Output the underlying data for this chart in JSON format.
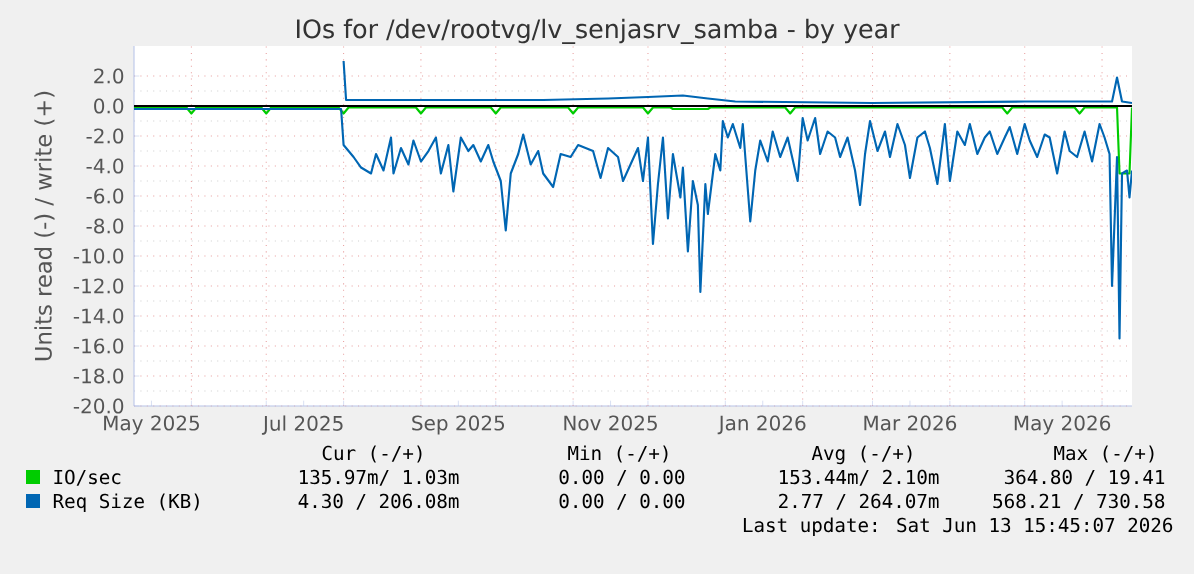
{
  "chart_data": {
    "type": "line",
    "title": "IOs for /dev/rootvg/lv_senjasrv_samba - by year",
    "ylabel": "Units read (-) / write (+)",
    "xlim": [
      "2025-05-09",
      "2026-06-13"
    ],
    "ylim": [
      -20,
      4
    ],
    "xticks": [
      {
        "value": "2025-05-16",
        "label": "May 2025"
      },
      {
        "value": "2025-07-16",
        "label": "Jul 2025"
      },
      {
        "value": "2025-09-16",
        "label": "Sep 2025"
      },
      {
        "value": "2025-11-16",
        "label": "Nov 2025"
      },
      {
        "value": "2026-01-16",
        "label": "Jan 2026"
      },
      {
        "value": "2026-03-16",
        "label": "Mar 2026"
      },
      {
        "value": "2026-05-16",
        "label": "May 2026"
      },
      {
        "value": "2025-06-01",
        "label": null
      },
      {
        "value": "2025-07-01",
        "label": null
      },
      {
        "value": "2025-08-01",
        "label": null
      },
      {
        "value": "2025-09-01",
        "label": null
      },
      {
        "value": "2025-10-01",
        "label": null
      },
      {
        "value": "2025-11-01",
        "label": null
      },
      {
        "value": "2025-12-01",
        "label": null
      },
      {
        "value": "2026-01-01",
        "label": null
      },
      {
        "value": "2026-02-01",
        "label": null
      },
      {
        "value": "2026-03-01",
        "label": null
      },
      {
        "value": "2026-04-01",
        "label": null
      },
      {
        "value": "2026-05-01",
        "label": null
      },
      {
        "value": "2026-06-01",
        "label": null
      }
    ],
    "yticks": [
      {
        "value": 2,
        "label": "2.0"
      },
      {
        "value": 0,
        "label": "0.0"
      },
      {
        "value": -2,
        "label": "-2.0"
      },
      {
        "value": -4,
        "label": "-4.0"
      },
      {
        "value": -6,
        "label": "-6.0"
      },
      {
        "value": -8,
        "label": "-8.0"
      },
      {
        "value": -10,
        "label": "-10.0"
      },
      {
        "value": -12,
        "label": "-12.0"
      },
      {
        "value": -14,
        "label": "-14.0"
      },
      {
        "value": -16,
        "label": "-16.0"
      },
      {
        "value": -18,
        "label": "-18.0"
      },
      {
        "value": -20,
        "label": "-20.0"
      }
    ],
    "grid": true,
    "legend": "bottom",
    "ref_lines": [
      {
        "axis": "y",
        "value": 0,
        "color": "#000000"
      }
    ],
    "series": [
      {
        "name": "IO/sec",
        "color": "#00cc00",
        "x": [
          "2025-05-09",
          "2025-05-30",
          "2025-06-01",
          "2025-06-03",
          "2025-06-29",
          "2025-07-01",
          "2025-07-03",
          "2025-07-30",
          "2025-08-01",
          "2025-08-03",
          "2025-08-30",
          "2025-09-01",
          "2025-09-03",
          "2025-09-29",
          "2025-10-01",
          "2025-10-03",
          "2025-10-30",
          "2025-11-01",
          "2025-11-03",
          "2025-11-29",
          "2025-12-01",
          "2025-12-03",
          "2025-12-10",
          "2025-12-11",
          "2025-12-25",
          "2025-12-26",
          "2026-01-25",
          "2026-01-27",
          "2026-01-29",
          "2026-04-22",
          "2026-04-24",
          "2026-04-26",
          "2026-05-21",
          "2026-05-23",
          "2026-05-25",
          "2026-06-07",
          "2026-06-08",
          "2026-06-12",
          "2026-06-13"
        ],
        "values": [
          -0.1,
          -0.1,
          -0.5,
          -0.1,
          -0.1,
          -0.5,
          -0.1,
          -0.1,
          -0.5,
          -0.1,
          -0.1,
          -0.5,
          -0.1,
          -0.1,
          -0.5,
          -0.1,
          -0.1,
          -0.5,
          -0.1,
          -0.1,
          -0.5,
          -0.1,
          -0.1,
          -0.2,
          -0.2,
          -0.1,
          -0.1,
          -0.5,
          -0.1,
          -0.1,
          -0.5,
          -0.1,
          -0.1,
          -0.5,
          -0.1,
          -0.1,
          -4.5,
          -4.5,
          -0.1
        ]
      },
      {
        "name": "Req Size (KB)",
        "color": "#0066b3",
        "x": [
          "2025-05-09",
          "2025-06-15",
          "2025-07-15",
          "2025-07-31",
          "2025-08-01",
          "2025-08-05",
          "2025-08-08",
          "2025-08-12",
          "2025-08-14",
          "2025-08-17",
          "2025-08-20",
          "2025-08-21",
          "2025-08-24",
          "2025-08-27",
          "2025-08-29",
          "2025-09-01",
          "2025-09-04",
          "2025-09-07",
          "2025-09-09",
          "2025-09-12",
          "2025-09-14",
          "2025-09-17",
          "2025-09-20",
          "2025-09-22",
          "2025-09-25",
          "2025-09-28",
          "2025-09-30",
          "2025-10-03",
          "2025-10-05",
          "2025-10-07",
          "2025-10-10",
          "2025-10-12",
          "2025-10-15",
          "2025-10-18",
          "2025-10-20",
          "2025-10-24",
          "2025-10-27",
          "2025-10-31",
          "2025-11-03",
          "2025-11-09",
          "2025-11-12",
          "2025-11-15",
          "2025-11-19",
          "2025-11-21",
          "2025-11-24",
          "2025-11-27",
          "2025-11-29",
          "2025-12-01",
          "2025-12-02",
          "2025-12-03",
          "2025-12-05",
          "2025-12-07",
          "2025-12-09",
          "2025-12-11",
          "2025-12-14",
          "2025-12-15",
          "2025-12-17",
          "2025-12-19",
          "2025-12-21",
          "2025-12-22",
          "2025-12-24",
          "2025-12-25",
          "2025-12-28",
          "2025-12-30",
          "2025-12-31",
          "2026-01-02",
          "2026-01-04",
          "2026-01-07",
          "2026-01-08",
          "2026-01-11",
          "2026-01-13",
          "2026-01-15",
          "2026-01-18",
          "2026-01-20",
          "2026-01-23",
          "2026-01-26",
          "2026-01-29",
          "2026-01-30",
          "2026-02-01",
          "2026-02-03",
          "2026-02-06",
          "2026-02-08",
          "2026-02-11",
          "2026-02-14",
          "2026-02-16",
          "2026-02-19",
          "2026-02-22",
          "2026-02-24",
          "2026-02-26",
          "2026-02-28",
          "2026-03-03",
          "2026-03-06",
          "2026-03-08",
          "2026-03-11",
          "2026-03-14",
          "2026-03-16",
          "2026-03-19",
          "2026-03-22",
          "2026-03-24",
          "2026-03-27",
          "2026-03-30",
          "2026-04-01",
          "2026-04-04",
          "2026-04-07",
          "2026-04-09",
          "2026-04-12",
          "2026-04-15",
          "2026-04-17",
          "2026-04-20",
          "2026-04-23",
          "2026-04-25",
          "2026-04-28",
          "2026-05-01",
          "2026-05-03",
          "2026-05-06",
          "2026-05-09",
          "2026-05-11",
          "2026-05-14",
          "2026-05-17",
          "2026-05-19",
          "2026-05-22",
          "2026-05-25",
          "2026-05-28",
          "2026-05-31",
          "2026-06-02",
          "2026-06-04",
          "2026-06-05",
          "2026-06-07",
          "2026-06-08",
          "2026-06-09",
          "2026-06-11",
          "2026-06-12",
          "2026-06-13"
        ],
        "values": [
          -0.2,
          -0.2,
          -0.2,
          -0.2,
          -2.6,
          -3.4,
          -4.1,
          -4.5,
          -3.2,
          -4.3,
          -2.1,
          -4.5,
          -2.8,
          -3.9,
          -2.3,
          -3.7,
          -3.0,
          -2.1,
          -4.5,
          -2.6,
          -5.7,
          -2.1,
          -3.0,
          -2.6,
          -3.7,
          -2.6,
          -3.7,
          -5.0,
          -8.3,
          -4.5,
          -3.2,
          -1.9,
          -3.9,
          -3.0,
          -4.5,
          -5.4,
          -3.2,
          -3.4,
          -2.6,
          -3.0,
          -4.8,
          -2.8,
          -3.4,
          -5.0,
          -3.9,
          -2.8,
          -5.0,
          -2.1,
          -5.7,
          -9.2,
          -5.2,
          -2.1,
          -7.5,
          -3.2,
          -6.1,
          -4.1,
          -9.7,
          -5.0,
          -6.6,
          -12.4,
          -5.2,
          -7.2,
          -3.2,
          -4.3,
          -1.0,
          -2.1,
          -1.2,
          -2.8,
          -1.2,
          -7.7,
          -4.3,
          -2.3,
          -3.7,
          -1.7,
          -3.4,
          -2.1,
          -4.3,
          -5.0,
          -0.8,
          -2.3,
          -0.8,
          -3.2,
          -1.7,
          -2.1,
          -3.4,
          -2.1,
          -4.3,
          -6.6,
          -3.2,
          -1.0,
          -3.0,
          -1.7,
          -3.4,
          -1.2,
          -2.6,
          -4.8,
          -2.1,
          -1.7,
          -2.8,
          -5.2,
          -1.2,
          -5.0,
          -1.7,
          -2.6,
          -1.2,
          -3.2,
          -2.1,
          -1.7,
          -3.2,
          -2.1,
          -1.4,
          -3.2,
          -1.2,
          -2.3,
          -3.4,
          -1.9,
          -2.1,
          -4.5,
          -1.7,
          -3.0,
          -3.4,
          -1.7,
          -3.7,
          -1.2,
          -2.1,
          -3.2,
          -12.0,
          -3.4,
          -15.5,
          -4.5,
          -4.3,
          -6.1,
          -4.3
        ]
      },
      {
        "color": "#0066b3",
        "x": [
          "2025-08-01",
          "2025-08-02",
          "2025-09-15",
          "2025-10-20",
          "2025-11-15",
          "2025-12-01",
          "2025-12-15",
          "2025-12-25",
          "2026-01-05",
          "2026-03-01",
          "2026-05-01",
          "2026-06-05",
          "2026-06-07",
          "2026-06-09",
          "2026-06-13"
        ],
        "values": [
          3.0,
          0.4,
          0.4,
          0.4,
          0.5,
          0.6,
          0.7,
          0.5,
          0.3,
          0.2,
          0.3,
          0.3,
          1.9,
          0.3,
          0.2
        ]
      }
    ],
    "annotations": [
      "Cur (-/+)",
      "Min (-/+)",
      "Avg (-/+)",
      "Max (-/+)",
      "135.97m/   1.03m",
      "0.00 /    0.00",
      "153.44m/   2.10m",
      "364.80 /  19.41",
      "4.30 / 206.08m",
      "0.00 /    0.00",
      "2.77 / 264.07m",
      "568.21 / 730.58",
      "Last update: Sat Jun 13 15:45:07 2026"
    ]
  }
}
